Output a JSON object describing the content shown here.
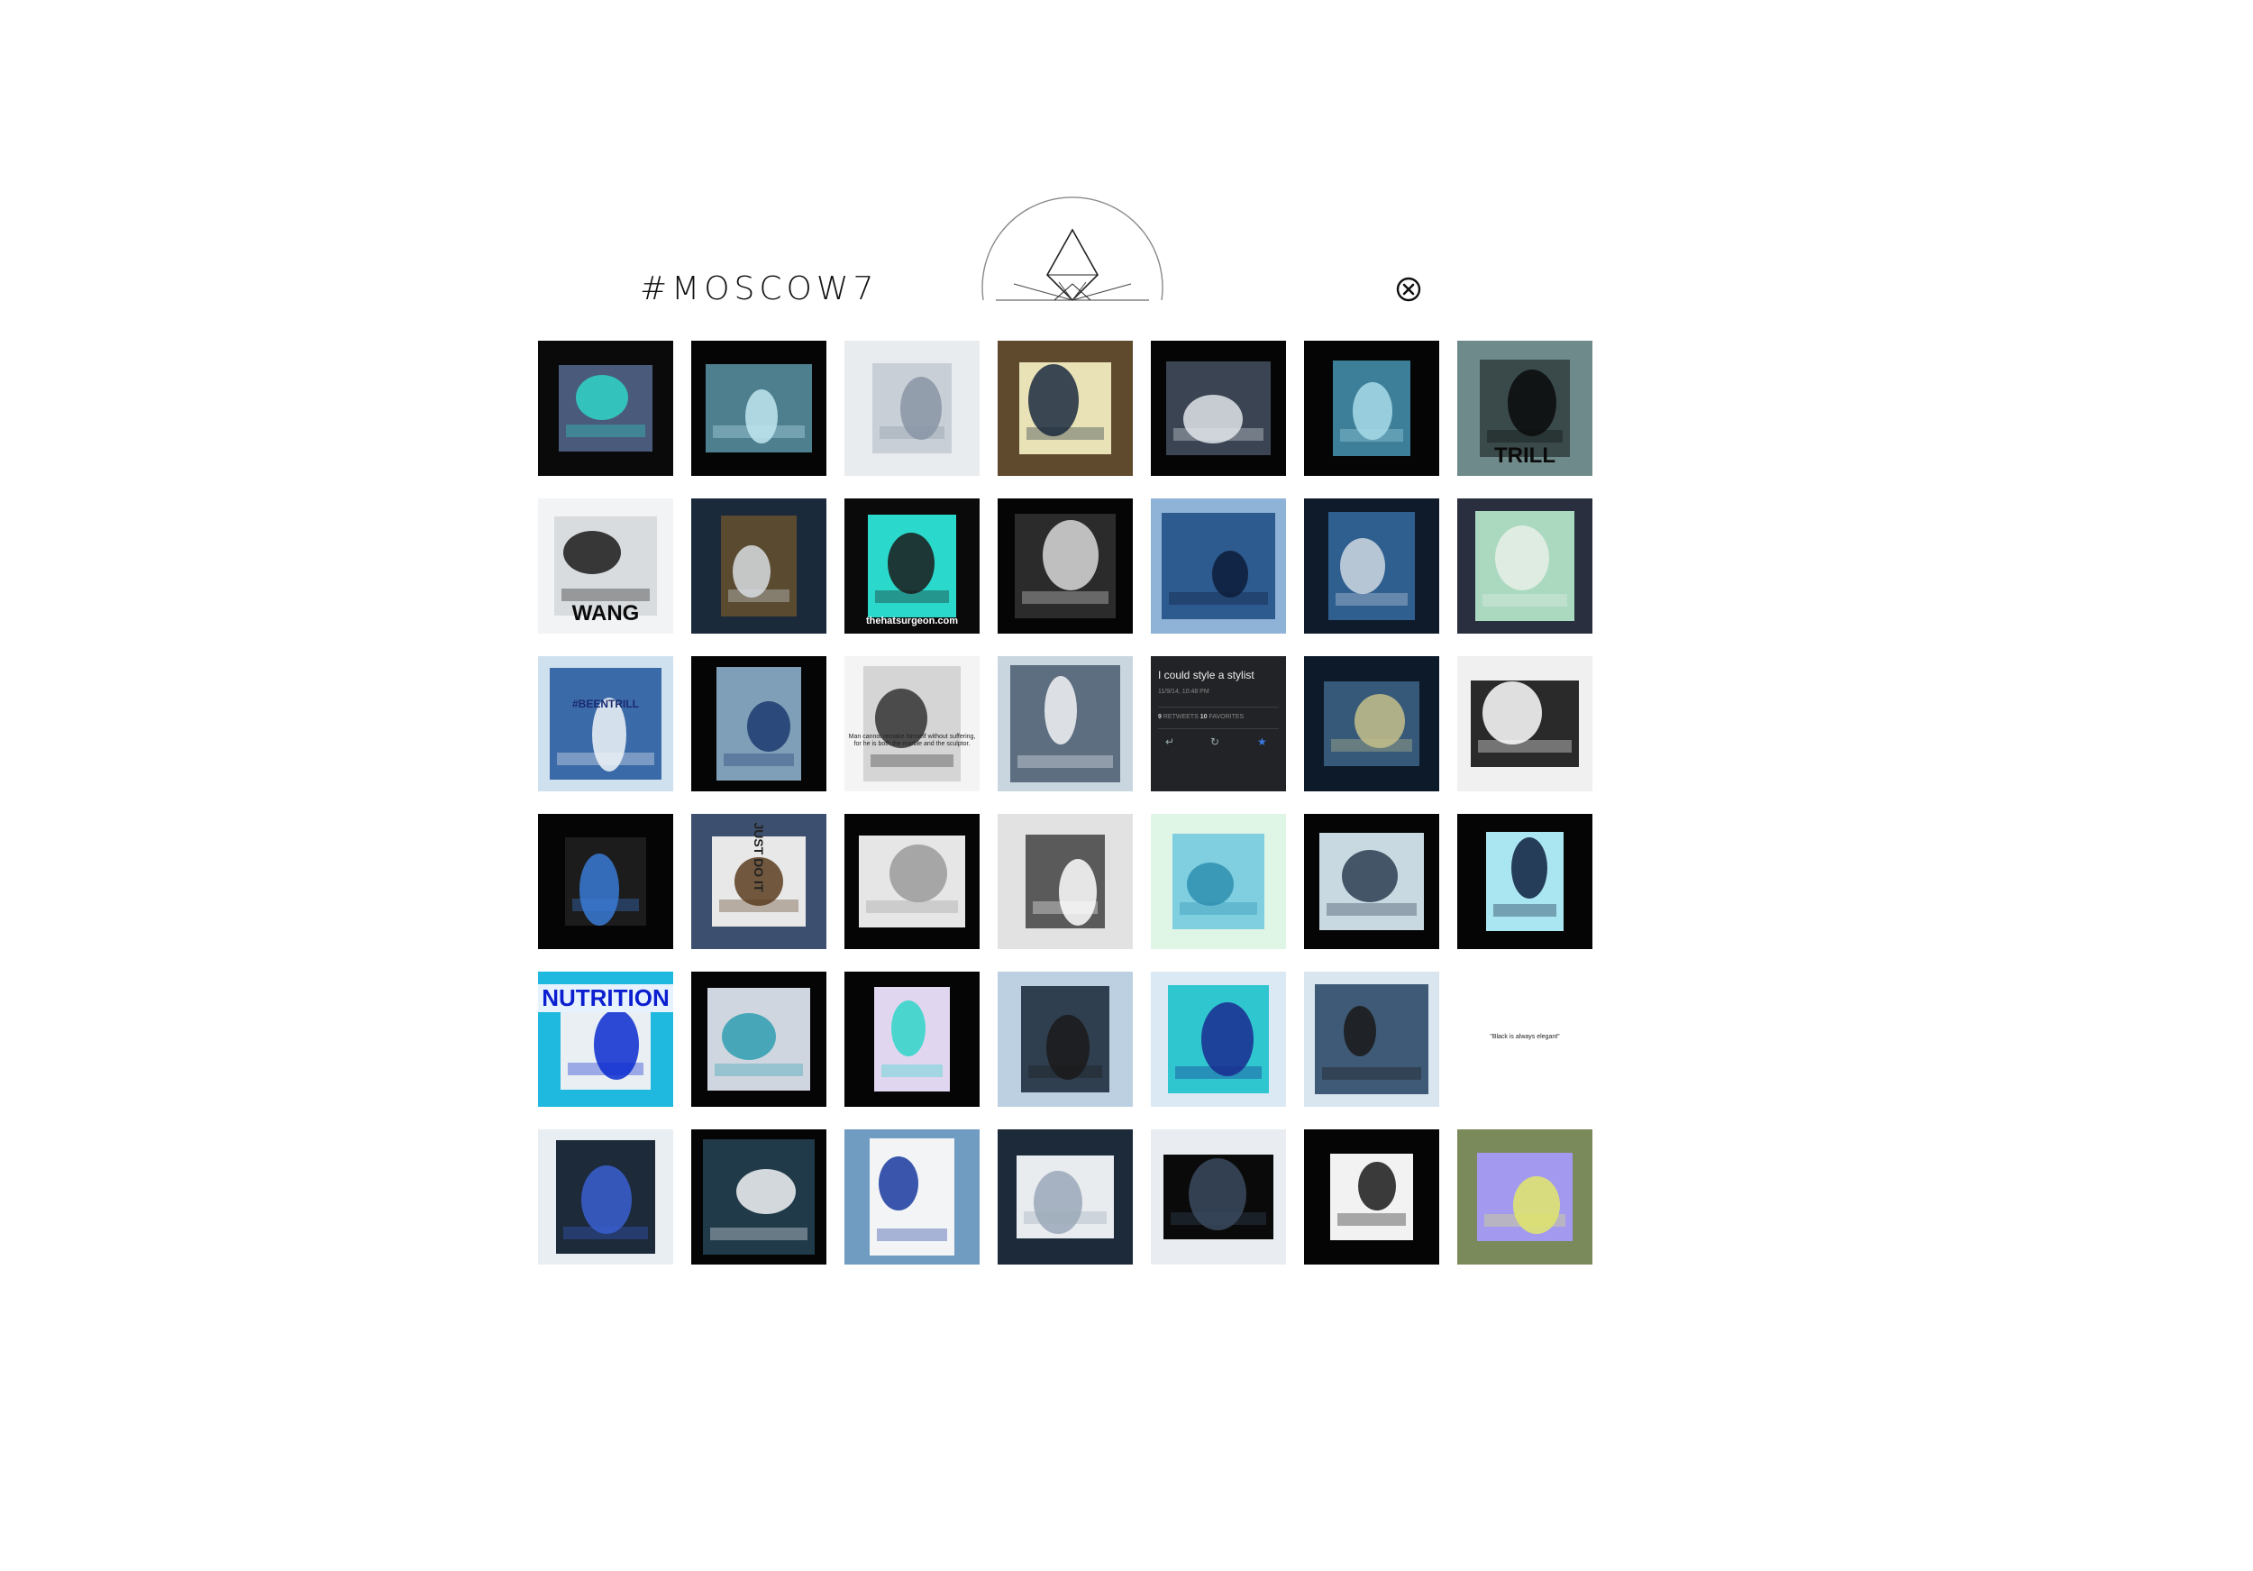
{
  "header": {
    "title": "#MOSCOW7",
    "logo_icon": "triangle-diamond-logo",
    "close_icon": "close-circle-icon"
  },
  "gallery": {
    "tiles": [
      {
        "kind": "photo",
        "name": "sneakers-box-photo",
        "bg": "#0a0a0a",
        "frame": "#4a5a7a",
        "accent": "#2fd6c8"
      },
      {
        "kind": "photo",
        "name": "hand-portrait-photo",
        "bg": "#050505",
        "frame": "#4d7f8f",
        "accent": "#bfe6f0"
      },
      {
        "kind": "photo",
        "name": "shoebox-paper-photo",
        "bg": "#e8ecef",
        "frame": "#c9cfd6",
        "accent": "#8a95a6"
      },
      {
        "kind": "photo",
        "name": "modern-house-photo",
        "bg": "#5f4a2e",
        "frame": "#e9e2b6",
        "accent": "#1b2a3f"
      },
      {
        "kind": "photo",
        "name": "hat-man-photo",
        "bg": "#050505",
        "frame": "#3a4452",
        "accent": "#e0e4ea"
      },
      {
        "kind": "photo",
        "name": "smoking-portrait-photo",
        "bg": "#050505",
        "frame": "#3d7f99",
        "accent": "#a7dbe8"
      },
      {
        "kind": "photo",
        "name": "trill-poster-photo",
        "bg": "#6f8a8a",
        "frame": "#3a4a4a",
        "accent": "#0b0b0b",
        "caption": "TRILL"
      },
      {
        "kind": "photo",
        "name": "wang-sunglasses-photo",
        "bg": "#f2f3f4",
        "frame": "#d9dcdf",
        "accent": "#1a1a1a",
        "caption": "WANG"
      },
      {
        "kind": "photo",
        "name": "sneakers-skirt-photo",
        "bg": "#1a2a3a",
        "frame": "#5a4a30",
        "accent": "#d8dde2"
      },
      {
        "kind": "photo",
        "name": "teal-cap-photo",
        "bg": "#0a0a0a",
        "frame": "#2bd9cc",
        "accent": "#1a1a1a",
        "caption": "thehatsurgeon.com"
      },
      {
        "kind": "photo",
        "name": "dark-doorway-photo",
        "bg": "#050505",
        "frame": "#2b2b2b",
        "accent": "#d9d9d9"
      },
      {
        "kind": "photo",
        "name": "street-walk-photo",
        "bg": "#8fb3d6",
        "frame": "#2d5a8f",
        "accent": "#0d1d3a"
      },
      {
        "kind": "photo",
        "name": "hallway-outfit-photo",
        "bg": "#0f1a2a",
        "frame": "#2f5f8f",
        "accent": "#cfd8e2"
      },
      {
        "kind": "photo",
        "name": "mirror-selfie-photo",
        "bg": "#2a2f3f",
        "frame": "#aad9c0",
        "accent": "#e9efe6"
      },
      {
        "kind": "photo",
        "name": "beentrill-store-photo",
        "bg": "#cfe0ef",
        "frame": "#3b6aa8",
        "accent": "#f0f4f8",
        "caption": "#BEENTRILL"
      },
      {
        "kind": "photo",
        "name": "jacket-outfit-photo",
        "bg": "#050505",
        "frame": "#7f9fb8",
        "accent": "#1c3a6e"
      },
      {
        "kind": "photo",
        "name": "sculpture-quote-photo",
        "bg": "#f4f4f4",
        "frame": "#d5d5d5",
        "accent": "#333333",
        "caption": "Man cannot remake himself without suffering, for he is both the marble and the sculptor."
      },
      {
        "kind": "photo",
        "name": "longsleeve-photo",
        "bg": "#c9d6e0",
        "frame": "#5d6e80",
        "accent": "#f2f4f6"
      },
      {
        "kind": "tweet",
        "name": "tweet-card",
        "text": "I could style a stylist",
        "date": "11/9/14, 10:48 PM",
        "retweets": "9",
        "retweets_label": "RETWEETS",
        "favorites": "10",
        "favorites_label": "FAVORITES"
      },
      {
        "kind": "photo",
        "name": "denim-skirt-photo",
        "bg": "#0d1a2a",
        "frame": "#36597a",
        "accent": "#c4c08a"
      },
      {
        "kind": "photo",
        "name": "cap-selfie-photo",
        "bg": "#f0f0f0",
        "frame": "#2a2a2a",
        "accent": "#ffffff"
      },
      {
        "kind": "photo",
        "name": "instagram-profile-photo",
        "bg": "#050505",
        "frame": "#1c1c1c",
        "accent": "#3a7ad6"
      },
      {
        "kind": "photo",
        "name": "just-do-it-photo",
        "bg": "#3d4f6e",
        "frame": "#e8e8e8",
        "accent": "#5a3d20",
        "caption": "JUST DO IT"
      },
      {
        "kind": "photo",
        "name": "framed-figure-photo",
        "bg": "#050505",
        "frame": "#e6e6e6",
        "accent": "#9a9a9a"
      },
      {
        "kind": "photo",
        "name": "tilted-portrait-photo",
        "bg": "#e2e2e2",
        "frame": "#5a5a5a",
        "accent": "#ffffff"
      },
      {
        "kind": "photo",
        "name": "blurred-aqua-photo",
        "bg": "#dff5e6",
        "frame": "#7fcfe0",
        "accent": "#2f8fb0"
      },
      {
        "kind": "photo",
        "name": "street-lamps-photo",
        "bg": "#050505",
        "frame": "#c9d9e2",
        "accent": "#2b3d50"
      },
      {
        "kind": "photo",
        "name": "hooded-figure-photo",
        "bg": "#050505",
        "frame": "#a9e6f2",
        "accent": "#0f1f3f"
      },
      {
        "kind": "photo",
        "name": "muscle-nutrition-photo",
        "bg": "#1fb9e0",
        "frame": "#e9eff2",
        "accent": "#0b2bd0",
        "caption": "NUTRITION"
      },
      {
        "kind": "photo",
        "name": "tiled-floor-photo",
        "bg": "#050505",
        "frame": "#cfd6e0",
        "accent": "#2f9fb0"
      },
      {
        "kind": "photo",
        "name": "stairs-sneakers-photo",
        "bg": "#050505",
        "frame": "#e0d6f0",
        "accent": "#2fd6c8"
      },
      {
        "kind": "photo",
        "name": "bucket-hat-photo",
        "bg": "#bcd0e2",
        "frame": "#2f3f50",
        "accent": "#1a1a1a"
      },
      {
        "kind": "photo",
        "name": "windbreaker-photo",
        "bg": "#dbe9f5",
        "frame": "#2fc6d0",
        "accent": "#1a2a8f"
      },
      {
        "kind": "photo",
        "name": "seated-boots-photo",
        "bg": "#d9e5ef",
        "frame": "#3f5a76",
        "accent": "#1a1a1a"
      },
      {
        "kind": "text",
        "name": "quote-card",
        "quote": "\"Black is always elegant\""
      },
      {
        "kind": "photo",
        "name": "skateboard-photo",
        "bg": "#e9eef2",
        "frame": "#1c2a3a",
        "accent": "#3a5fd0"
      },
      {
        "kind": "photo",
        "name": "hightop-sneaker-photo",
        "bg": "#050505",
        "frame": "#203a4a",
        "accent": "#f2f4f5"
      },
      {
        "kind": "photo",
        "name": "hermes-bracelet-photo",
        "bg": "#6f9cc0",
        "frame": "#f2f4f6",
        "accent": "#1a3a9f"
      },
      {
        "kind": "photo",
        "name": "group-photo",
        "bg": "#1c2a3a",
        "frame": "#e8ecef",
        "accent": "#9aa8b8"
      },
      {
        "kind": "photo",
        "name": "sports-car-photo",
        "bg": "#e9edf1",
        "frame": "#0a0a0a",
        "accent": "#3a4a5f"
      },
      {
        "kind": "photo",
        "name": "bw-collage-photo",
        "bg": "#050505",
        "frame": "#f2f2f2",
        "accent": "#1a1a1a"
      },
      {
        "kind": "photo",
        "name": "surreal-landscape-photo",
        "bg": "#7a8a5a",
        "frame": "#a39af0",
        "accent": "#e2e66a"
      }
    ]
  }
}
